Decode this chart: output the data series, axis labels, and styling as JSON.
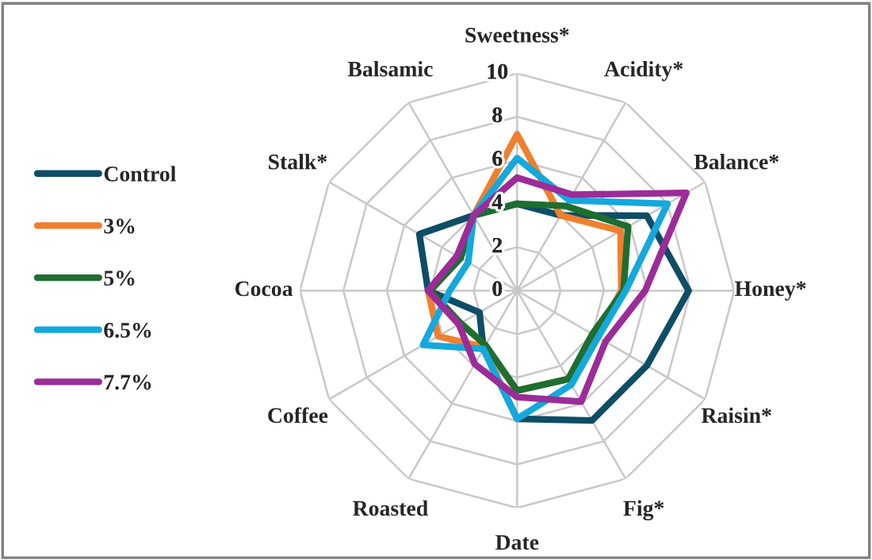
{
  "chart_data": {
    "type": "radar",
    "categories": [
      "Sweetness*",
      "Acidity*",
      "Balance*",
      "Honey*",
      "Raisin*",
      "Fig*",
      "Date",
      "Roasted",
      "Coffee",
      "Cocoa",
      "Stalk*",
      "Balsamic"
    ],
    "series": [
      {
        "name": "Control",
        "color": "#0e4d66",
        "values": [
          4.0,
          4.0,
          6.9,
          7.9,
          6.9,
          6.9,
          5.9,
          3.1,
          2.0,
          4.1,
          5.2,
          4.0
        ]
      },
      {
        "name": "3%",
        "color": "#f07f2e",
        "values": [
          7.2,
          4.0,
          5.5,
          4.8,
          4.2,
          4.7,
          4.6,
          3.0,
          4.2,
          4.1,
          3.0,
          4.0
        ]
      },
      {
        "name": "5%",
        "color": "#1e6e30",
        "values": [
          4.0,
          4.5,
          5.9,
          4.9,
          4.0,
          4.7,
          4.6,
          2.9,
          3.0,
          4.0,
          3.0,
          4.0
        ]
      },
      {
        "name": "6.5%",
        "color": "#14a8de",
        "values": [
          6.1,
          4.8,
          8.0,
          5.0,
          4.3,
          5.0,
          5.9,
          3.1,
          5.0,
          3.1,
          2.6,
          4.0
        ]
      },
      {
        "name": "7.7%",
        "color": "#9b2c98",
        "values": [
          5.2,
          5.1,
          9.0,
          5.9,
          4.7,
          5.9,
          4.9,
          3.9,
          3.1,
          4.1,
          3.2,
          4.0
        ]
      }
    ],
    "ylim": [
      0,
      10
    ],
    "yticks": [
      0,
      2,
      4,
      6,
      8,
      10
    ],
    "grid": true,
    "legend": "left",
    "line_style": "solid",
    "marker": "none"
  }
}
